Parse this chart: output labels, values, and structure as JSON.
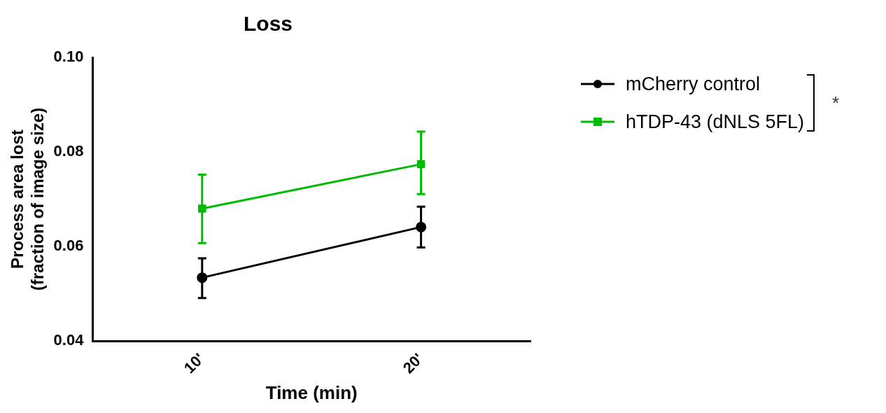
{
  "chart_data": {
    "type": "line",
    "title": "Loss",
    "xlabel": "Time (min)",
    "ylabel": "Process area lost\n(fraction of image size)",
    "categories": [
      "10'",
      "20'"
    ],
    "series": [
      {
        "name": "mCherry control",
        "color": "#000000",
        "marker": "circle",
        "values": [
          0.0534,
          0.0641
        ],
        "errors": [
          [
            0.0491,
            0.0575
          ],
          [
            0.0598,
            0.0684
          ]
        ]
      },
      {
        "name": "hTDP-43 (dNLS 5FL)",
        "color": "#00bb00",
        "marker": "square",
        "values": [
          0.068,
          0.0774
        ],
        "errors": [
          [
            0.0607,
            0.0752
          ],
          [
            0.0711,
            0.0843
          ]
        ]
      }
    ],
    "ylim": [
      0.04,
      0.1
    ],
    "yticks": [
      {
        "value": 0.04,
        "label": "0.04"
      },
      {
        "value": 0.06,
        "label": "0.06"
      },
      {
        "value": 0.08,
        "label": "0.08"
      },
      {
        "value": 0.1,
        "label": "0.10"
      }
    ],
    "grid": false,
    "legend": "top right",
    "line_style": "solid",
    "annotations": [
      "*"
    ]
  }
}
